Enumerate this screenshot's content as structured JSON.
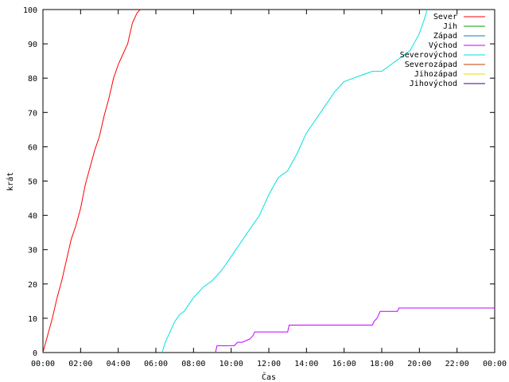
{
  "chart_data": {
    "type": "line",
    "xlabel": "Čas",
    "ylabel": "krát",
    "xlim": [
      "00:00",
      "24:00"
    ],
    "ylim": [
      0,
      100
    ],
    "x_ticks": [
      "00:00",
      "02:00",
      "04:00",
      "06:00",
      "08:00",
      "10:00",
      "12:00",
      "14:00",
      "16:00",
      "18:00",
      "20:00",
      "22:00",
      "00:00"
    ],
    "y_ticks": [
      0,
      10,
      20,
      30,
      40,
      50,
      60,
      70,
      80,
      90,
      100
    ],
    "grid": false,
    "legend_position": "top-right",
    "series": [
      {
        "name": "Sever",
        "color": "#ff0000",
        "x": [
          "00:00",
          "00:15",
          "00:30",
          "00:45",
          "01:00",
          "01:15",
          "01:30",
          "01:45",
          "02:00",
          "02:15",
          "02:30",
          "02:45",
          "03:00",
          "03:15",
          "03:30",
          "03:45",
          "04:00",
          "04:15",
          "04:30",
          "04:45",
          "05:00",
          "05:10"
        ],
        "y": [
          0,
          5,
          10,
          16,
          21,
          27,
          33,
          37,
          42,
          49,
          54,
          59,
          63,
          69,
          74,
          80,
          84,
          87,
          90,
          96,
          99,
          100
        ]
      },
      {
        "name": "Jih",
        "color": "#00a000",
        "x": [],
        "y": []
      },
      {
        "name": "Západ",
        "color": "#0080c0",
        "x": [],
        "y": []
      },
      {
        "name": "Východ",
        "color": "#c000ff",
        "x": [
          "09:10",
          "09:15",
          "10:10",
          "10:20",
          "10:35",
          "11:00",
          "11:10",
          "11:15",
          "13:00",
          "13:05",
          "17:30",
          "17:35",
          "17:45",
          "17:55",
          "18:50",
          "18:55",
          "24:00"
        ],
        "y": [
          0,
          2,
          2,
          3,
          3,
          4,
          5,
          6,
          6,
          8,
          8,
          9,
          10,
          12,
          12,
          13,
          13
        ]
      },
      {
        "name": "Severovýchod",
        "color": "#00e0e0",
        "x": [
          "06:20",
          "06:30",
          "06:45",
          "07:00",
          "07:15",
          "07:30",
          "07:45",
          "08:00",
          "08:30",
          "09:00",
          "09:30",
          "10:00",
          "10:30",
          "11:00",
          "11:30",
          "12:00",
          "12:30",
          "13:00",
          "13:30",
          "14:00",
          "14:30",
          "15:00",
          "15:30",
          "16:00",
          "16:30",
          "17:00",
          "17:30",
          "18:00",
          "18:30",
          "19:00",
          "19:30",
          "20:00",
          "20:15",
          "20:25"
        ],
        "y": [
          0,
          3,
          6,
          9,
          11,
          12,
          14,
          16,
          19,
          21,
          24,
          28,
          32,
          36,
          40,
          46,
          51,
          53,
          58,
          64,
          68,
          72,
          76,
          79,
          80,
          81,
          82,
          82,
          84,
          86,
          88,
          93,
          97,
          100
        ]
      },
      {
        "name": "Severozápad",
        "color": "#c04000",
        "x": [],
        "y": []
      },
      {
        "name": "Jihozápad",
        "color": "#e0e000",
        "x": [],
        "y": []
      },
      {
        "name": "Jihovýchod",
        "color": "#400080",
        "x": [],
        "y": []
      }
    ]
  }
}
